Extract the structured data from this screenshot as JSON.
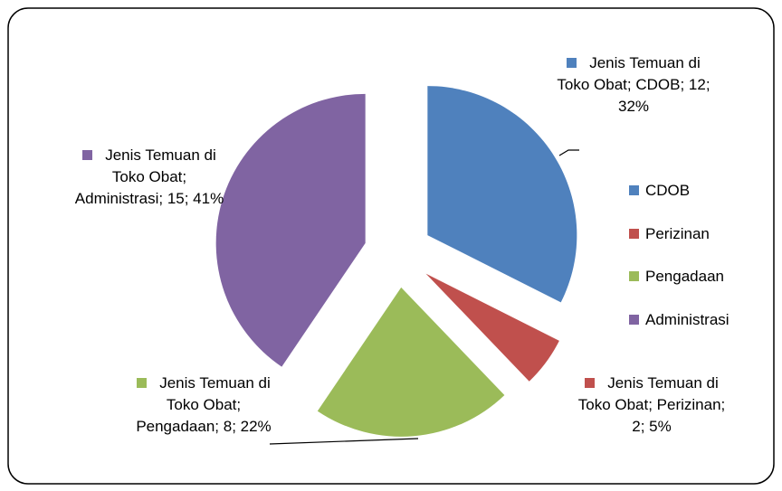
{
  "chart_data": {
    "type": "pie",
    "series_name": "Jenis Temuan di Toko Obat",
    "categories": [
      "CDOB",
      "Perizinan",
      "Pengadaan",
      "Administrasi"
    ],
    "values": [
      12,
      2,
      8,
      15
    ],
    "value_labels": [
      "Jenis Temuan di Toko Obat; CDOB; 12; 32%",
      "Jenis Temuan di Toko Obat; Perizinan; 2; 5%",
      "Jenis Temuan di Toko Obat; Pengadaan; 8; 22%",
      "Jenis Temuan di Toko Obat; Administrasi; 15; 41%"
    ],
    "colors": [
      "#4f81bd",
      "#c0504d",
      "#9bbb59",
      "#8064a2"
    ],
    "exploded": true,
    "legend": "right"
  }
}
